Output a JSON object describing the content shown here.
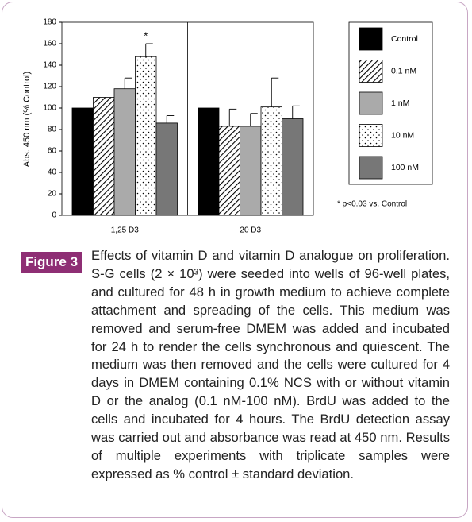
{
  "chart_data": {
    "type": "bar",
    "y_label": "Abs. 450 nm (% Control)",
    "categories": [
      "1,25 D3",
      "20 D3"
    ],
    "series": [
      {
        "name": "Control",
        "color": "#000000",
        "values": [
          100,
          100
        ],
        "errors": [
          null,
          null
        ]
      },
      {
        "name": "0.1 nM",
        "color": "#ffffff",
        "pattern": "hatch",
        "values": [
          110,
          83
        ],
        "errors": [
          null,
          16
        ]
      },
      {
        "name": "1 nM",
        "color": "#aaaaaa",
        "values": [
          118,
          83
        ],
        "errors": [
          10,
          12
        ]
      },
      {
        "name": "10 nM",
        "color": "#ffffff",
        "pattern": "dots",
        "values": [
          148,
          101
        ],
        "errors": [
          12,
          27
        ]
      },
      {
        "name": "100 nM",
        "color": "#777777",
        "values": [
          86,
          90
        ],
        "errors": [
          7,
          12
        ]
      }
    ],
    "ylim": [
      0,
      180
    ],
    "yticks": [
      0,
      20,
      40,
      60,
      80,
      100,
      120,
      140,
      160,
      180
    ],
    "annotations": [
      {
        "text": "*",
        "series": 3,
        "category": 0
      }
    ],
    "note": "* p<0.03 vs. Control"
  },
  "caption": {
    "label": "Figure 3",
    "text": "Effects of vitamin D and vitamin D analogue on proliferation. S-G cells (2 × 10³) were seeded into wells of 96-well plates, and cultured for 48 h in growth medium to achieve complete attachment and spreading of the cells. This medium was removed and serum-free DMEM was added and incubated for 24 h to render the cells synchronous and quiescent. The medium was then removed and the cells were cultured for 4 days in DMEM containing 0.1% NCS with or without vitamin D or the analog (0.1 nM-100 nM). BrdU was added to the cells and incubated for 4 hours. The BrdU detection assay was carried out and absorbance was read at 450 nm. Results of multiple experiments with triplicate samples were expressed as % control ± standard deviation."
  }
}
